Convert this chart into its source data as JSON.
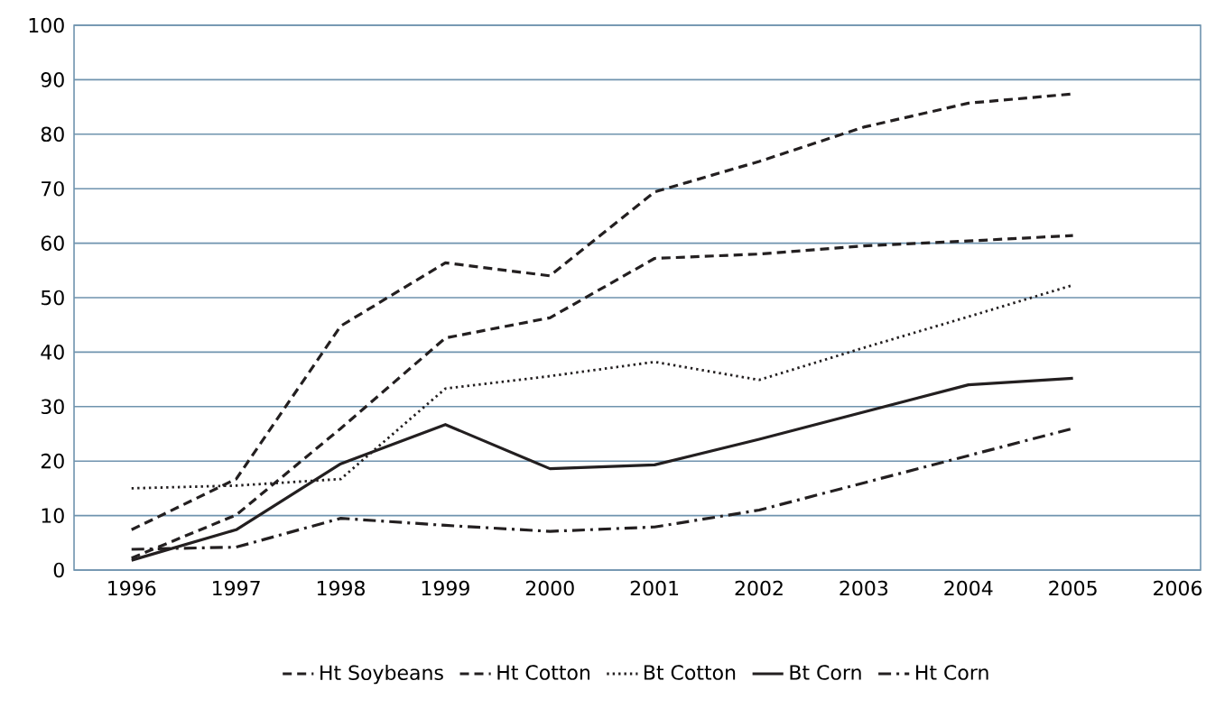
{
  "chart_data": {
    "type": "line",
    "categories": [
      "1996",
      "1997",
      "1998",
      "1999",
      "2000",
      "2001",
      "2002",
      "2003",
      "2004",
      "2005",
      "2006"
    ],
    "ylim": [
      0,
      100
    ],
    "yticks": [
      0,
      10,
      20,
      30,
      40,
      50,
      60,
      70,
      80,
      90,
      100
    ],
    "grid": "y",
    "legend": "bottom",
    "marker": "none",
    "series": [
      {
        "name": "Ht Soybeans",
        "color": "#231f20",
        "line_style": "dashed",
        "values": [
          7.4,
          16.7,
          44.8,
          56.4,
          54,
          69.4,
          75,
          81.3,
          85.7,
          87.4,
          null
        ]
      },
      {
        "name": "Ht Cotton",
        "color": "#231f20",
        "line_style": "dashed",
        "values": [
          2.2,
          10.1,
          26,
          42.6,
          46.3,
          57.2,
          58,
          59.5,
          60.4,
          61.4,
          null
        ]
      },
      {
        "name": "Bt Cotton",
        "color": "#231f20",
        "line_style": "dotted",
        "values": [
          15,
          15.5,
          16.7,
          33.3,
          35.6,
          38.2,
          34.9,
          40.8,
          46.5,
          52.3,
          null
        ]
      },
      {
        "name": "Bt Corn",
        "color": "#231f20",
        "line_style": "solid",
        "values": [
          1.8,
          7.4,
          19.5,
          26.7,
          18.6,
          19.3,
          24,
          29,
          34,
          35.2,
          null
        ]
      },
      {
        "name": "Ht Corn",
        "color": "#231f20",
        "line_style": "dashdot",
        "values": [
          3.8,
          4.2,
          9.5,
          8.2,
          7.1,
          7.9,
          11,
          16,
          21,
          26,
          null
        ]
      }
    ]
  }
}
